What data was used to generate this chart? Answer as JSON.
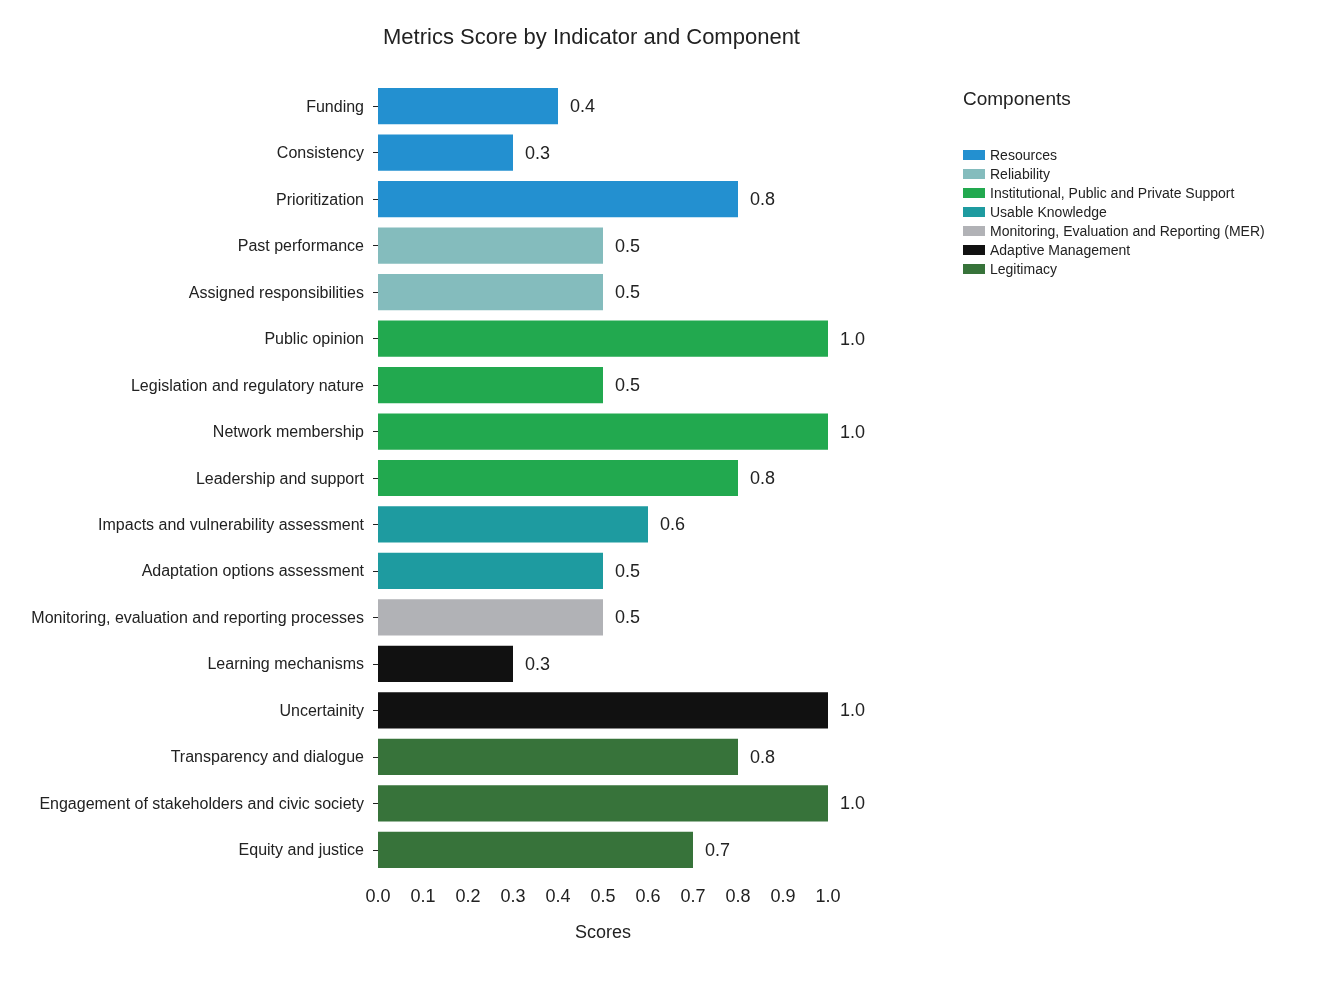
{
  "chart_data": {
    "type": "bar",
    "orientation": "horizontal",
    "title": "Metrics Score by Indicator and Component",
    "xlabel": "Scores",
    "legend_title": "Components",
    "legend": "top right",
    "grid": false,
    "categories": [
      "Funding",
      "Consistency",
      "Prioritization",
      "Past performance",
      "Assigned responsibilities",
      "Public opinion",
      "Legislation and regulatory nature",
      "Network membership",
      "Leadership and support",
      "Impacts and vulnerability assessment",
      "Adaptation options assessment",
      "Monitoring, evaluation and reporting processes",
      "Learning mechanisms",
      "Uncertainity",
      "Transparency and dialogue",
      "Engagement of stakeholders and civic society",
      "Equity and justice"
    ],
    "xlim": [
      0,
      1.0
    ],
    "xticks": [
      {
        "value": 0,
        "label": "0.0"
      },
      0.1,
      0.2,
      0.3,
      0.4,
      0.5,
      0.6,
      0.7,
      0.8,
      0.9,
      {
        "value": 1,
        "label": "1.0"
      }
    ],
    "series": [
      {
        "name": "Resources",
        "color": "#2390d0",
        "values": [
          0.4,
          0.3,
          0.8,
          null,
          null,
          null,
          null,
          null,
          null,
          null,
          null,
          null,
          null,
          null,
          null,
          null,
          null
        ],
        "value_labels": [
          "0.4",
          "0.3",
          "0.8",
          null,
          null,
          null,
          null,
          null,
          null,
          null,
          null,
          null,
          null,
          null,
          null,
          null,
          null
        ]
      },
      {
        "name": "Reliability",
        "color": "#84bcbd",
        "values": [
          null,
          null,
          null,
          0.5,
          0.5,
          null,
          null,
          null,
          null,
          null,
          null,
          null,
          null,
          null,
          null,
          null,
          null
        ],
        "value_labels": [
          null,
          null,
          null,
          "0.5",
          "0.5",
          null,
          null,
          null,
          null,
          null,
          null,
          null,
          null,
          null,
          null,
          null,
          null
        ]
      },
      {
        "name": "Institutional, Public and Private Support",
        "color": "#22a94f",
        "values": [
          null,
          null,
          null,
          null,
          null,
          1.0,
          0.5,
          1.0,
          0.8,
          null,
          null,
          null,
          null,
          null,
          null,
          null,
          null
        ],
        "value_labels": [
          null,
          null,
          null,
          null,
          null,
          "1.0",
          "0.5",
          "1.0",
          "0.8",
          null,
          null,
          null,
          null,
          null,
          null,
          null,
          null
        ]
      },
      {
        "name": "Usable Knowledge",
        "color": "#1e9ba0",
        "values": [
          null,
          null,
          null,
          null,
          null,
          null,
          null,
          null,
          null,
          0.6,
          0.5,
          null,
          null,
          null,
          null,
          null,
          null
        ],
        "value_labels": [
          null,
          null,
          null,
          null,
          null,
          null,
          null,
          null,
          null,
          "0.6",
          "0.5",
          null,
          null,
          null,
          null,
          null,
          null
        ]
      },
      {
        "name": "Monitoring, Evaluation and Reporting (MER)",
        "color": "#b1b2b6",
        "values": [
          null,
          null,
          null,
          null,
          null,
          null,
          null,
          null,
          null,
          null,
          null,
          0.5,
          null,
          null,
          null,
          null,
          null
        ],
        "value_labels": [
          null,
          null,
          null,
          null,
          null,
          null,
          null,
          null,
          null,
          null,
          null,
          "0.5",
          null,
          null,
          null,
          null,
          null
        ]
      },
      {
        "name": "Adaptive Management",
        "color": "#111111",
        "values": [
          null,
          null,
          null,
          null,
          null,
          null,
          null,
          null,
          null,
          null,
          null,
          null,
          0.3,
          1.0,
          null,
          null,
          null
        ],
        "value_labels": [
          null,
          null,
          null,
          null,
          null,
          null,
          null,
          null,
          null,
          null,
          null,
          null,
          "0.3",
          "1.0",
          null,
          null,
          null
        ]
      },
      {
        "name": "Legitimacy",
        "color": "#37733a",
        "values": [
          null,
          null,
          null,
          null,
          null,
          null,
          null,
          null,
          null,
          null,
          null,
          null,
          null,
          null,
          0.8,
          1.0,
          0.7
        ],
        "value_labels": [
          null,
          null,
          null,
          null,
          null,
          null,
          null,
          null,
          null,
          null,
          null,
          null,
          null,
          null,
          "0.8",
          "1.0",
          "0.7"
        ]
      }
    ]
  }
}
